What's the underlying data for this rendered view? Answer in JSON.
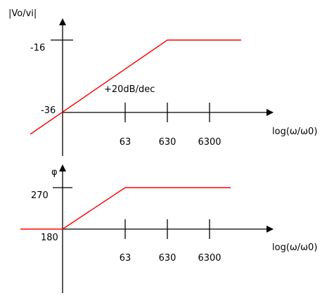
{
  "colors": {
    "axis": "#000000",
    "curve": "#ff0000",
    "background": "#ffffff"
  },
  "magnitude": {
    "ylabel": "|Vo/vi|",
    "xlabel": "log(ω/ω0)",
    "y_ticks": [
      "-16",
      "-36"
    ],
    "x_ticks": [
      "63",
      "630",
      "6300"
    ],
    "slope_label": "+20dB/dec"
  },
  "phase": {
    "ylabel": "φ",
    "xlabel": "log(ω/ω0)",
    "y_ticks": [
      "270",
      "180"
    ],
    "x_ticks": [
      "63",
      "630",
      "6300"
    ]
  }
}
